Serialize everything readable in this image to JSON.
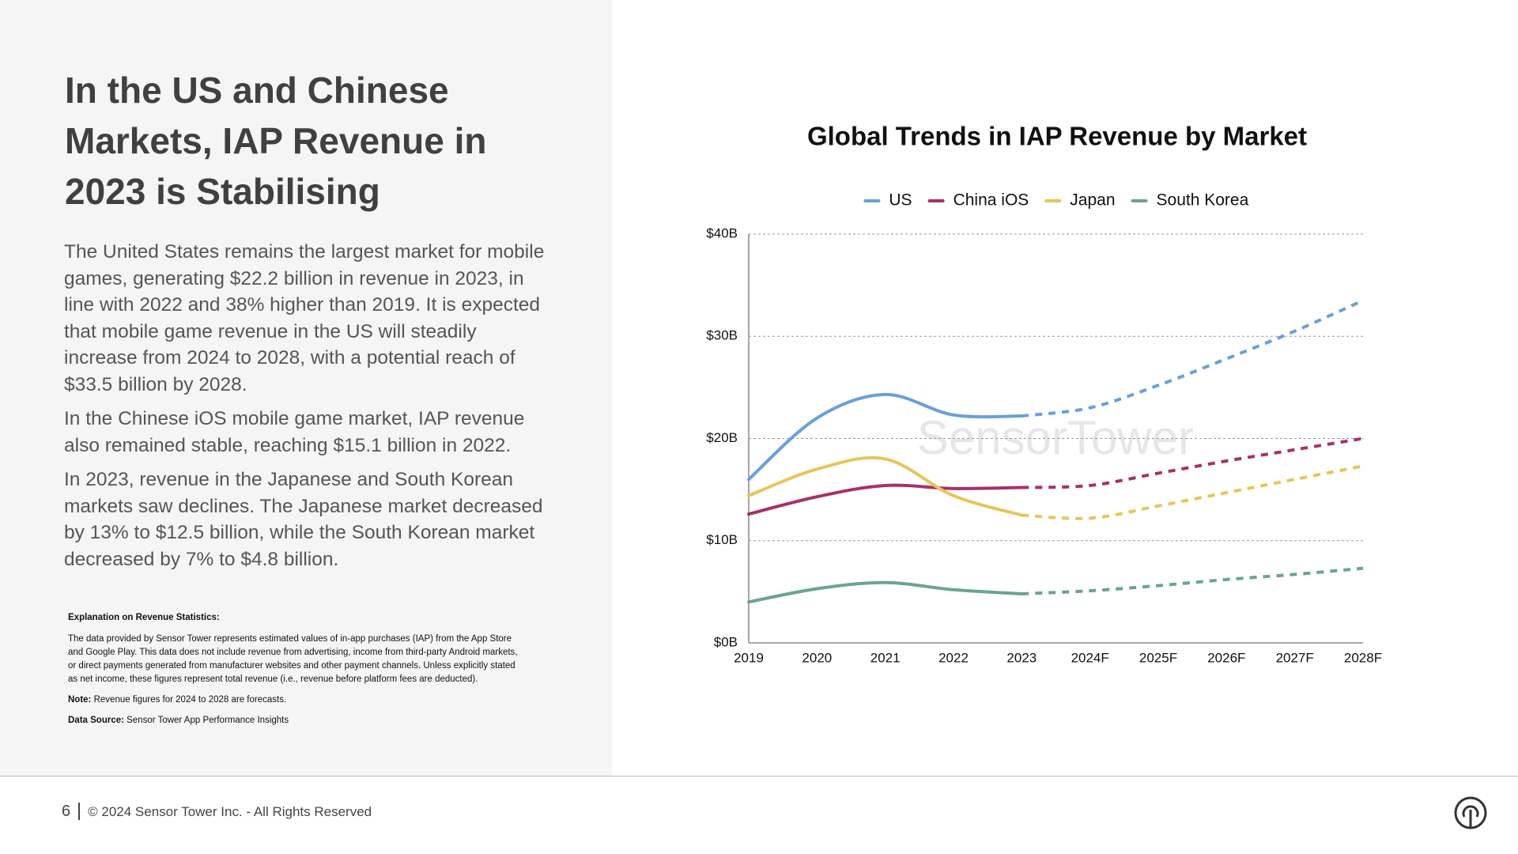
{
  "heading": "In the US and Chinese Markets, IAP Revenue in 2023 is Stabilising",
  "paragraphs": [
    "The United States remains the largest market for mobile games, generating $22.2 billion in revenue in 2023, in line with 2022 and 38% higher than 2019. It is expected that mobile game revenue in the US will steadily increase from 2024 to 2028, with a potential reach of $33.5 billion by 2028.",
    "In the Chinese iOS mobile game market, IAP revenue also remained stable, reaching $15.1 billion in 2022.",
    "In 2023, revenue in the Japanese and South Korean markets saw declines. The Japanese market decreased by 13% to $12.5 billion, while the South Korean market decreased by 7% to $4.8 billion."
  ],
  "notes": {
    "heading": "Explanation on Revenue Statistics:",
    "text": "The data provided by Sensor Tower represents estimated values of in-app purchases (IAP) from the App Store and Google Play. This data does not include revenue from advertising, income from third-party Android markets, or direct payments generated from manufacturer websites and other payment channels. Unless explicitly stated as net income, these figures represent total revenue (i.e., revenue before platform fees are deducted).",
    "note": {
      "label": "Note:",
      "text": "Revenue figures for 2024 to 2028 are forecasts."
    },
    "source": {
      "label": "Data Source:",
      "text": "Sensor Tower App Performance Insights"
    }
  },
  "footer": {
    "page": "6",
    "copyright": "© 2024 Sensor Tower Inc. - All Rights Reserved"
  },
  "chart_data": {
    "type": "line",
    "title": "Global Trends in IAP Revenue by Market",
    "watermark": "SensorTower",
    "categories": [
      "2019",
      "2020",
      "2021",
      "2022",
      "2023",
      "2024F",
      "2025F",
      "2026F",
      "2027F",
      "2028F"
    ],
    "dashed_from": 4,
    "series": [
      {
        "name": "US",
        "color": "#6a9fdc",
        "values": [
          16.0,
          22.0,
          24.3,
          22.3,
          22.2,
          23.0,
          25.2,
          27.8,
          30.5,
          33.5
        ]
      },
      {
        "name": "China iOS",
        "color": "#a8306a",
        "values": [
          12.6,
          14.3,
          15.4,
          15.1,
          15.2,
          15.4,
          16.6,
          17.8,
          18.9,
          20.0
        ]
      },
      {
        "name": "Japan",
        "color": "#e8c45a",
        "values": [
          14.4,
          17.0,
          18.0,
          14.4,
          12.5,
          12.2,
          13.4,
          14.7,
          16.0,
          17.3
        ]
      },
      {
        "name": "South Korea",
        "color": "#6aa394",
        "values": [
          4.0,
          5.3,
          5.9,
          5.2,
          4.8,
          5.1,
          5.6,
          6.2,
          6.7,
          7.3
        ]
      }
    ],
    "ylim": [
      0,
      40
    ],
    "yticks": [
      {
        "value": 0,
        "label": "$0B"
      },
      {
        "value": 10,
        "label": "$10B"
      },
      {
        "value": 20,
        "label": "$20B"
      },
      {
        "value": 30,
        "label": "$30B"
      },
      {
        "value": 40,
        "label": "$40B"
      }
    ],
    "grid": true,
    "legend": "top"
  }
}
